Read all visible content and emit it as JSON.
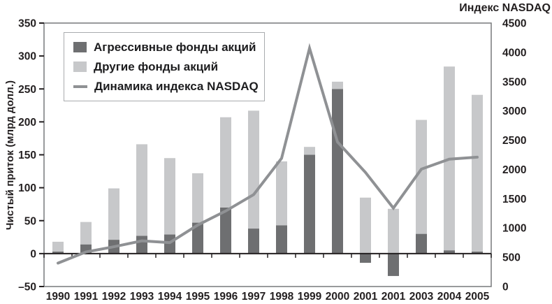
{
  "titles": {
    "left_axis": "Чистый приток (млрд долл.)",
    "right_axis": "Индекс NASDAQ"
  },
  "legend": {
    "items": [
      {
        "swatch": "box",
        "color": "#6e6f71",
        "label": "Агрессивные фонды акций"
      },
      {
        "swatch": "box",
        "color": "#c7c8ca",
        "label": "Другие фонды акций"
      },
      {
        "swatch": "line",
        "color": "#8f9194",
        "label": "Динамика индекса NASDAQ"
      }
    ]
  },
  "chart_data": {
    "type": "bar",
    "subtype": "stacked-bars-with-line-overlay",
    "categories": [
      "1990",
      "1991",
      "1992",
      "1993",
      "1994",
      "1995",
      "1996",
      "1997",
      "1998",
      "1999",
      "2000",
      "2001",
      "2001",
      "2003",
      "2004",
      "2005"
    ],
    "series": [
      {
        "name": "Агрессивные фонды акций",
        "type": "bar",
        "axis": "left",
        "color": "#6e6f71",
        "values": [
          3,
          14,
          21,
          27,
          29,
          47,
          70,
          38,
          43,
          150,
          250,
          -14,
          -34,
          30,
          5,
          3
        ]
      },
      {
        "name": "Другие фонды акций",
        "type": "bar",
        "axis": "left",
        "color": "#c7c8ca",
        "values": [
          15,
          34,
          78,
          139,
          116,
          75,
          137,
          179,
          97,
          12,
          11,
          85,
          68,
          173,
          279,
          238
        ]
      },
      {
        "name": "Динамика индекса NASDAQ",
        "type": "line",
        "axis": "right",
        "color": "#8f9194",
        "values": [
          400,
          590,
          680,
          780,
          750,
          1050,
          1290,
          1570,
          2190,
          4070,
          2470,
          1950,
          1340,
          2005,
          2175,
          2210
        ]
      }
    ],
    "left_axis": {
      "label": "Чистый приток (млрд долл.)",
      "min": -50,
      "max": 350,
      "tick_values": [
        350,
        300,
        250,
        200,
        150,
        100,
        50,
        0,
        -50
      ],
      "tick_labels": [
        "350",
        "300",
        "250",
        "200",
        "150",
        "100",
        "50",
        "0",
        "–50"
      ]
    },
    "right_axis": {
      "label": "Индекс NASDAQ",
      "min": 0,
      "max": 4500,
      "tick_values": [
        4500,
        4000,
        3500,
        3000,
        2500,
        2000,
        1500,
        1000,
        500,
        0
      ],
      "tick_labels": [
        "4500",
        "4000",
        "3500",
        "3000",
        "2500",
        "2000",
        "1500",
        "1000",
        "500",
        "0"
      ]
    },
    "grid": false,
    "legend_position": "top-left-inside",
    "style": {
      "frame_color": "#77787b",
      "axis_color": "#231f20",
      "background": "#ffffff"
    }
  }
}
